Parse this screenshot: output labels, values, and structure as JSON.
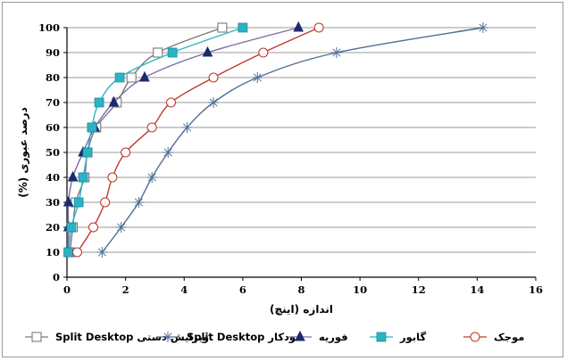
{
  "chart_data": {
    "type": "line",
    "title": "",
    "xlabel": "اندازه (اینچ)",
    "ylabel": "درصد عبوری (%)",
    "xlim": [
      0,
      16
    ],
    "ylim": [
      0,
      100
    ],
    "x_ticks": [
      "0",
      "2",
      "4",
      "6",
      "8",
      "10",
      "12",
      "14",
      "16"
    ],
    "y_ticks": [
      "0",
      "10",
      "20",
      "30",
      "40",
      "50",
      "60",
      "70",
      "80",
      "90",
      "100"
    ],
    "grid": true,
    "legend_position": "bottom",
    "series": [
      {
        "name": "Split Desktop ویرایش دستی",
        "color": "#7a7a7a",
        "marker": "open-square",
        "points": [
          [
            0.1,
            10
          ],
          [
            0.2,
            20
          ],
          [
            0.3,
            30
          ],
          [
            0.6,
            40
          ],
          [
            0.7,
            50
          ],
          [
            1.0,
            60
          ],
          [
            1.7,
            70
          ],
          [
            2.2,
            80
          ],
          [
            3.1,
            90
          ],
          [
            5.3,
            100
          ]
        ]
      },
      {
        "name": "Split Desktop خودکار",
        "color": "#4f6f95",
        "marker": "star",
        "points": [
          [
            1.2,
            10
          ],
          [
            1.85,
            20
          ],
          [
            2.45,
            30
          ],
          [
            2.9,
            40
          ],
          [
            3.45,
            50
          ],
          [
            4.1,
            60
          ],
          [
            5.0,
            70
          ],
          [
            6.5,
            80
          ],
          [
            9.2,
            90
          ],
          [
            14.2,
            100
          ]
        ]
      },
      {
        "name": "فوریه",
        "color": "#7f6aa8",
        "marker": "filled-triangle",
        "points": [
          [
            0.05,
            10
          ],
          [
            0.05,
            20
          ],
          [
            0.05,
            30
          ],
          [
            0.2,
            40
          ],
          [
            0.55,
            50
          ],
          [
            0.95,
            60
          ],
          [
            1.6,
            70
          ],
          [
            2.65,
            80
          ],
          [
            4.8,
            90
          ],
          [
            7.9,
            100
          ]
        ]
      },
      {
        "name": "گابور",
        "color": "#2ab3c4",
        "marker": "filled-square",
        "points": [
          [
            0.05,
            10
          ],
          [
            0.15,
            20
          ],
          [
            0.4,
            30
          ],
          [
            0.55,
            40
          ],
          [
            0.7,
            50
          ],
          [
            0.85,
            60
          ],
          [
            1.1,
            70
          ],
          [
            1.8,
            80
          ],
          [
            3.6,
            90
          ],
          [
            6.0,
            100
          ]
        ]
      },
      {
        "name": "موجک",
        "color": "#c0392b",
        "marker": "open-circle",
        "points": [
          [
            0.35,
            10
          ],
          [
            0.9,
            20
          ],
          [
            1.3,
            30
          ],
          [
            1.55,
            40
          ],
          [
            2.0,
            50
          ],
          [
            2.9,
            60
          ],
          [
            3.55,
            70
          ],
          [
            5.0,
            80
          ],
          [
            6.7,
            90
          ],
          [
            8.6,
            100
          ]
        ]
      }
    ]
  },
  "legend": {
    "items": [
      {
        "label": "Split Desktop ویرایش دستی",
        "marker": "open-square",
        "color": "#7a7a7a"
      },
      {
        "label": "Split Desktop خودکار",
        "marker": "star",
        "color": "#4f6f95"
      },
      {
        "label": "فوریه",
        "marker": "filled-triangle",
        "color": "#7f6aa8"
      },
      {
        "label": "گابور",
        "marker": "filled-square",
        "color": "#2ab3c4"
      },
      {
        "label": "موجک",
        "marker": "open-circle",
        "color": "#c0392b"
      }
    ]
  },
  "colors": {
    "marker_fill_square": "#2ab3c4",
    "marker_fill_triangle": "#1a2a6c",
    "grid": "#9a9a9a",
    "axis": "#000000"
  }
}
